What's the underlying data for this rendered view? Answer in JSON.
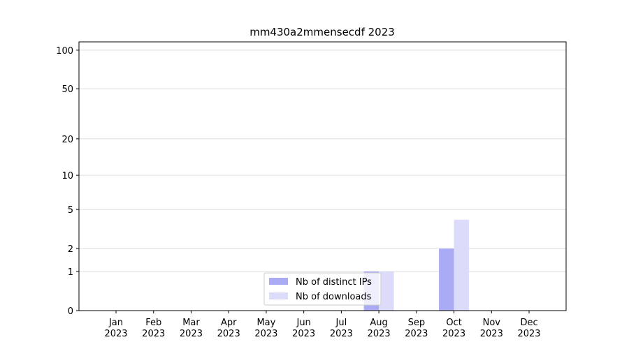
{
  "chart_data": {
    "type": "bar",
    "title": "mm430a2mmensecdf 2023",
    "categories": [
      "Jan 2023",
      "Feb 2023",
      "Mar 2023",
      "Apr 2023",
      "May 2023",
      "Jun 2023",
      "Jul 2023",
      "Aug 2023",
      "Sep 2023",
      "Oct 2023",
      "Nov 2023",
      "Dec 2023"
    ],
    "series": [
      {
        "name": "Nb of distinct IPs",
        "color": "#aaaaf5",
        "values": [
          0,
          0,
          0,
          0,
          0,
          0,
          0,
          1,
          0,
          2,
          0,
          0
        ]
      },
      {
        "name": "Nb of downloads",
        "color": "#dcdcfa",
        "values": [
          0,
          0,
          0,
          0,
          0,
          0,
          0,
          1,
          0,
          4,
          0,
          0
        ]
      }
    ],
    "yscale": "log1p",
    "ylim": [
      0,
      116
    ],
    "yticks": [
      0,
      1,
      2,
      5,
      10,
      20,
      50,
      100
    ],
    "grid": true,
    "legend": "lower center"
  }
}
